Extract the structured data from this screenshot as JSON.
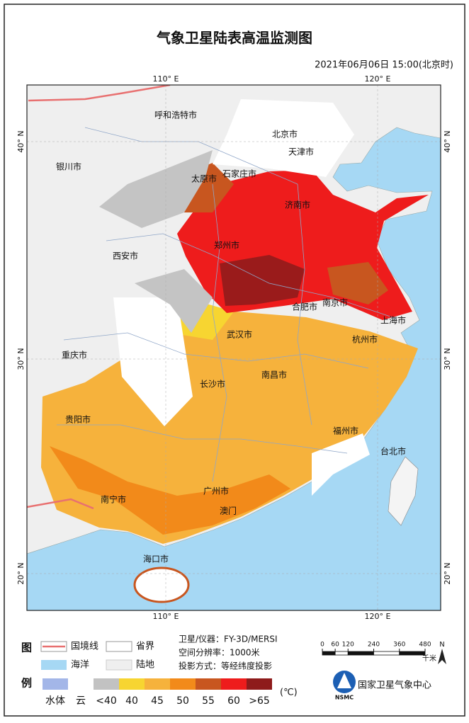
{
  "header": {
    "title": "气象卫星陆表高温监测图",
    "timestamp": "2021年06月06日  15:00(北京时)"
  },
  "map": {
    "lon_labels": [
      "110° E",
      "120° E"
    ],
    "lat_labels": [
      "40° N",
      "30° N",
      "20° N"
    ],
    "cities": [
      "呼和浩特市",
      "北京市",
      "天津市",
      "银川市",
      "太原市",
      "石家庄市",
      "济南市",
      "郑州市",
      "西安市",
      "合肥市",
      "南京市",
      "上海市",
      "武汉市",
      "杭州市",
      "重庆市",
      "长沙市",
      "南昌市",
      "贵阳市",
      "福州市",
      "台北市",
      "南宁市",
      "广州市",
      "澳门",
      "海口市"
    ]
  },
  "legend": {
    "heading": [
      "图",
      "例"
    ],
    "items": [
      "国境线",
      "省界",
      "海洋",
      "陆地"
    ],
    "info": [
      "卫星/仪器：FY-3D/MERSI",
      "空间分辨率：1000米",
      "投影方式：等经纬度投影"
    ],
    "scale": {
      "ticks": [
        0,
        60,
        120,
        240,
        360,
        480
      ],
      "unit": "千米",
      "north": "N"
    },
    "classes": [
      {
        "label": "水体",
        "color": "#a3b6e8"
      },
      {
        "label": "云",
        "color": "#ffffff"
      },
      {
        "label": "<40",
        "color": "#c2c2c2"
      },
      {
        "label": "40",
        "color": "#f7d531"
      },
      {
        "label": "45",
        "color": "#f6b23c"
      },
      {
        "label": "50",
        "color": "#f28a1a"
      },
      {
        "label": "55",
        "color": "#c8561f"
      },
      {
        "label": "60",
        "color": "#ee1c1c"
      },
      {
        "label": ">65",
        "color": "#8e1b1b"
      }
    ],
    "unit": "(℃)",
    "org": "国家卫星气象中心",
    "org_short": "NSMC"
  }
}
